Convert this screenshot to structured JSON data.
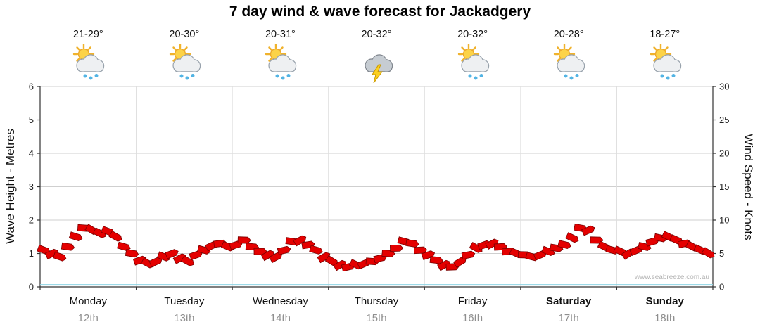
{
  "title": "7 day wind & wave forecast for Jackadgery",
  "watermark": "www.seabreeze.com.au",
  "days": [
    {
      "temp": "21-29°",
      "icon": "sun-cloud-rain",
      "name": "Monday",
      "date": "12th",
      "weekend": false
    },
    {
      "temp": "20-30°",
      "icon": "sun-cloud-rain",
      "name": "Tuesday",
      "date": "13th",
      "weekend": false
    },
    {
      "temp": "20-31°",
      "icon": "sun-cloud-rain",
      "name": "Wednesday",
      "date": "14th",
      "weekend": false
    },
    {
      "temp": "20-32°",
      "icon": "thunderstorm",
      "name": "Thursday",
      "date": "15th",
      "weekend": false
    },
    {
      "temp": "20-32°",
      "icon": "sun-cloud-rain",
      "name": "Friday",
      "date": "16th",
      "weekend": false
    },
    {
      "temp": "20-28°",
      "icon": "sun-cloud-rain",
      "name": "Saturday",
      "date": "17th",
      "weekend": true
    },
    {
      "temp": "18-27°",
      "icon": "sun-cloud-rain",
      "name": "Sunday",
      "date": "18th",
      "weekend": true
    }
  ],
  "chart_data": {
    "type": "area",
    "title": "7 day wind & wave forecast for Jackadgery",
    "left_axis": {
      "label": "Wave Height - Metres",
      "min": 0,
      "max": 6,
      "ticks": [
        0,
        1,
        2,
        3,
        4,
        5,
        6
      ]
    },
    "right_axis": {
      "label": "Wind Speed - Knots",
      "min": 0,
      "max": 30,
      "ticks": [
        0,
        5,
        10,
        15,
        20,
        25,
        30
      ]
    },
    "x_categories": [
      "Monday 12th",
      "Tuesday 13th",
      "Wednesday 14th",
      "Thursday 15th",
      "Friday 16th",
      "Saturday 17th",
      "Sunday 18th"
    ],
    "grid": true,
    "series": [
      {
        "name": "Wind Speed (knots)",
        "style": "wind-arrows",
        "color": "#e40000",
        "outline": "#7a0000",
        "values": [
          5.5,
          5.0,
          4.5,
          6.0,
          7.5,
          8.8,
          8.5,
          8.0,
          8.3,
          7.5,
          6.0,
          5.0,
          4.0,
          3.5,
          3.8,
          4.5,
          5.0,
          4.3,
          3.8,
          4.8,
          5.5,
          6.2,
          6.5,
          6.0,
          6.3,
          7.0,
          6.0,
          5.3,
          4.8,
          4.5,
          5.5,
          6.8,
          7.0,
          6.3,
          5.5,
          4.5,
          3.8,
          3.3,
          3.0,
          3.3,
          3.5,
          3.8,
          4.3,
          5.0,
          5.8,
          6.8,
          6.5,
          5.5,
          4.8,
          4.0,
          3.3,
          3.0,
          3.8,
          4.8,
          5.8,
          6.3,
          6.5,
          6.0,
          5.3,
          5.0,
          4.8,
          4.5,
          4.8,
          5.3,
          5.8,
          6.3,
          7.3,
          8.8,
          8.5,
          7.0,
          6.0,
          5.5,
          5.3,
          5.0,
          5.5,
          6.0,
          6.8,
          7.3,
          7.5,
          7.0,
          6.5,
          6.0,
          5.5,
          5.0
        ]
      },
      {
        "name": "Wave Height (metres)",
        "style": "line",
        "color": "#8fd4e4",
        "constant_value": 0.06
      }
    ]
  }
}
